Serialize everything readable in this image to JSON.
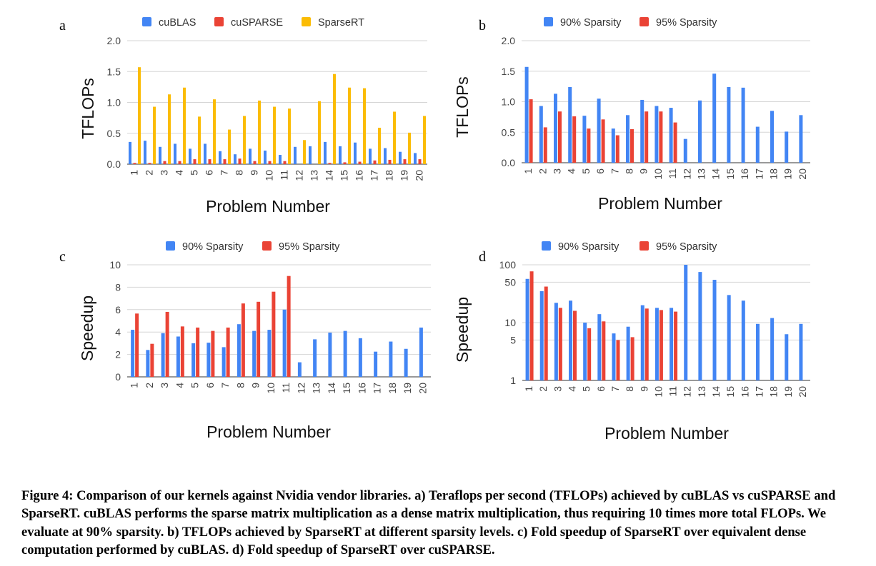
{
  "caption": "Figure 4: Comparison of our kernels against Nvidia vendor libraries. a) Teraflops per second (TFLOPs) achieved by cuBLAS vs cuSPARSE and SparseRT. cuBLAS performs the sparse matrix multiplication as a dense matrix multiplication, thus requiring 10 times more total FLOPs. We evaluate at 90% sparsity. b) TFLOPs achieved by SparseRT at different sparsity levels. c) Fold speedup of SparseRT over equivalent dense computation performed by cuBLAS. d) Fold speedup of SparseRT over cuSPARSE.",
  "chart_data": [
    {
      "panel": "a",
      "type": "bar",
      "categories": [
        "1",
        "2",
        "3",
        "4",
        "5",
        "6",
        "7",
        "8",
        "9",
        "10",
        "11",
        "12",
        "13",
        "14",
        "15",
        "16",
        "17",
        "18",
        "19",
        "20"
      ],
      "series": [
        {
          "name": "cuBLAS",
          "color": "#4285F4",
          "values": [
            0.36,
            0.38,
            0.28,
            0.33,
            0.25,
            0.33,
            0.21,
            0.16,
            0.25,
            0.22,
            0.15,
            0.28,
            0.29,
            0.36,
            0.29,
            0.35,
            0.25,
            0.26,
            0.2,
            0.18
          ]
        },
        {
          "name": "cuSPARSE",
          "color": "#EA4335",
          "values": [
            0.02,
            0.02,
            0.05,
            0.05,
            0.08,
            0.08,
            0.08,
            0.09,
            0.05,
            0.05,
            0.05,
            0,
            0,
            0.02,
            0.03,
            0.04,
            0.06,
            0.07,
            0.08,
            0.08
          ]
        },
        {
          "name": "SparseRT",
          "color": "#FBBC04",
          "values": [
            1.57,
            0.93,
            1.13,
            1.24,
            0.77,
            1.05,
            0.56,
            0.78,
            1.03,
            0.93,
            0.9,
            0.39,
            1.02,
            1.46,
            1.24,
            1.23,
            0.59,
            0.85,
            0.51,
            0.78
          ]
        }
      ],
      "title": "",
      "xlabel": "Problem Number",
      "ylabel": "TFLOPs",
      "yticks": [
        "0.0",
        "0.5",
        "1.0",
        "1.5",
        "2.0"
      ],
      "ylim": [
        0,
        2
      ],
      "scale": "linear",
      "legend": "top-center",
      "grid": true
    },
    {
      "panel": "b",
      "type": "bar",
      "categories": [
        "1",
        "2",
        "3",
        "4",
        "5",
        "6",
        "7",
        "8",
        "9",
        "10",
        "11",
        "12",
        "13",
        "14",
        "15",
        "16",
        "17",
        "18",
        "19",
        "20"
      ],
      "series": [
        {
          "name": "90% Sparsity",
          "color": "#4285F4",
          "values": [
            1.57,
            0.93,
            1.13,
            1.24,
            0.77,
            1.05,
            0.56,
            0.78,
            1.03,
            0.93,
            0.9,
            0.39,
            1.02,
            1.46,
            1.24,
            1.23,
            0.59,
            0.85,
            0.51,
            0.78
          ]
        },
        {
          "name": "95% Sparsity",
          "color": "#EA4335",
          "values": [
            1.04,
            0.58,
            0.84,
            0.76,
            0.56,
            0.71,
            0.45,
            0.55,
            0.84,
            0.84,
            0.66,
            0,
            0,
            0,
            0,
            0,
            0,
            0,
            0,
            0
          ]
        }
      ],
      "title": "",
      "xlabel": "Problem Number",
      "ylabel": "TFLOPs",
      "yticks": [
        "0.0",
        "0.5",
        "1.0",
        "1.5",
        "2.0"
      ],
      "ylim": [
        0,
        2
      ],
      "scale": "linear",
      "legend": "top-center",
      "grid": true
    },
    {
      "panel": "c",
      "type": "bar",
      "categories": [
        "1",
        "2",
        "3",
        "4",
        "5",
        "6",
        "7",
        "8",
        "9",
        "10",
        "11",
        "12",
        "13",
        "14",
        "15",
        "16",
        "17",
        "18",
        "19",
        "20"
      ],
      "series": [
        {
          "name": "90% Sparsity",
          "color": "#4285F4",
          "values": [
            4.2,
            2.4,
            3.9,
            3.6,
            3.0,
            3.05,
            2.65,
            4.7,
            4.1,
            4.2,
            6.0,
            1.3,
            3.35,
            3.95,
            4.1,
            3.45,
            2.25,
            3.15,
            2.5,
            4.4
          ]
        },
        {
          "name": "95% Sparsity",
          "color": "#EA4335",
          "values": [
            5.65,
            2.95,
            5.8,
            4.5,
            4.4,
            4.1,
            4.4,
            6.55,
            6.7,
            7.6,
            9.0,
            0,
            0,
            0,
            0,
            0,
            0,
            0,
            0,
            0
          ]
        }
      ],
      "title": "",
      "xlabel": "Problem Number",
      "ylabel": "Speedup",
      "yticks": [
        "0",
        "2",
        "4",
        "6",
        "8",
        "10"
      ],
      "ylim": [
        0,
        10
      ],
      "scale": "linear",
      "legend": "top-center",
      "grid": true
    },
    {
      "panel": "d",
      "type": "bar",
      "categories": [
        "1",
        "2",
        "3",
        "4",
        "5",
        "6",
        "7",
        "8",
        "9",
        "10",
        "11",
        "12",
        "13",
        "14",
        "15",
        "16",
        "17",
        "18",
        "19",
        "20"
      ],
      "series": [
        {
          "name": "90% Sparsity",
          "color": "#4285F4",
          "values": [
            57,
            35,
            22,
            24,
            10,
            14,
            6.5,
            8.5,
            20,
            18,
            18,
            100,
            75,
            55,
            30,
            24,
            9.5,
            12,
            6.3,
            9.5
          ]
        },
        {
          "name": "95% Sparsity",
          "color": "#EA4335",
          "values": [
            77,
            42,
            18,
            16,
            8,
            10.5,
            5,
            5.6,
            17.5,
            16.5,
            15.5,
            0,
            0,
            0,
            0,
            0,
            0,
            0,
            0,
            0
          ]
        }
      ],
      "title": "",
      "xlabel": "Problem Number",
      "ylabel": "Speedup",
      "yticks": [
        "1",
        "5",
        "10",
        "50",
        "100"
      ],
      "ylim": [
        1,
        100
      ],
      "scale": "log",
      "legend": "top-center",
      "grid": true
    }
  ]
}
